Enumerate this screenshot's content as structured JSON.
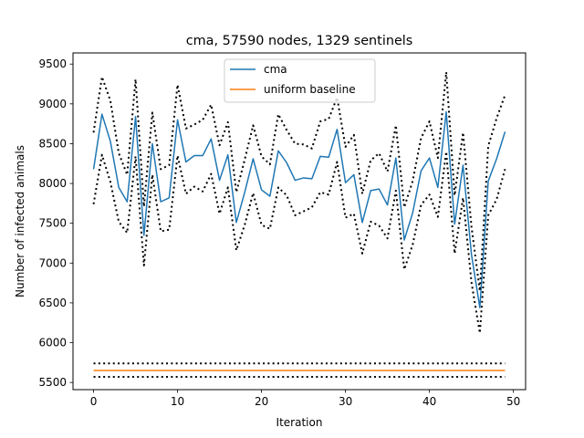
{
  "chart_data": {
    "type": "line",
    "title": "cma, 57590 nodes, 1329 sentinels",
    "xlabel": "Iteration",
    "ylabel": "Number of infected animals",
    "xlim": [
      -2.45,
      51.45
    ],
    "ylim": [
      5410,
      9640
    ],
    "xticks": [
      0,
      10,
      20,
      30,
      40,
      50
    ],
    "yticks": [
      5500,
      6000,
      6500,
      7000,
      7500,
      8000,
      8500,
      9000,
      9500
    ],
    "legend": {
      "placement": "top-center"
    },
    "grid": false,
    "x": [
      0,
      1,
      2,
      3,
      4,
      5,
      6,
      7,
      8,
      9,
      10,
      11,
      12,
      13,
      14,
      15,
      16,
      17,
      18,
      19,
      20,
      21,
      22,
      23,
      24,
      25,
      26,
      27,
      28,
      29,
      30,
      31,
      32,
      33,
      34,
      35,
      36,
      37,
      38,
      39,
      40,
      41,
      42,
      43,
      44,
      45,
      46,
      47,
      48,
      49
    ],
    "series": [
      {
        "name": "cma",
        "color": "#1f77b4",
        "style": "solid",
        "values": [
          8180,
          8870,
          8530,
          7950,
          7770,
          8840,
          7350,
          8500,
          7770,
          7820,
          8800,
          8270,
          8350,
          8350,
          8560,
          8040,
          8360,
          7510,
          7890,
          8310,
          7920,
          7840,
          8410,
          8260,
          8040,
          8070,
          8060,
          8340,
          8330,
          8680,
          8010,
          8110,
          7510,
          7910,
          7930,
          7730,
          8320,
          7290,
          7630,
          8160,
          8320,
          7950,
          8900,
          7490,
          8230,
          7110,
          6440,
          8030,
          8310,
          8650
        ]
      },
      {
        "name": "cma upper bound",
        "color": "#000000",
        "style": "dotted",
        "values": [
          8640,
          9340,
          9040,
          8380,
          8110,
          9310,
          7710,
          8890,
          8180,
          8230,
          9240,
          8690,
          8740,
          8800,
          8990,
          8480,
          8770,
          7890,
          8300,
          8730,
          8340,
          8240,
          8870,
          8670,
          8500,
          8490,
          8440,
          8780,
          8810,
          9080,
          8460,
          8610,
          7870,
          8290,
          8380,
          8150,
          8730,
          7700,
          8030,
          8570,
          8780,
          8320,
          9400,
          7850,
          8640,
          7460,
          6650,
          8470,
          8820,
          9110
        ]
      },
      {
        "name": "cma lower bound",
        "color": "#000000",
        "style": "dotted",
        "values": [
          7740,
          8360,
          8020,
          7520,
          7380,
          8340,
          6970,
          8110,
          7400,
          7420,
          8350,
          7870,
          7960,
          7900,
          8120,
          7620,
          7950,
          7160,
          7480,
          7880,
          7480,
          7430,
          7950,
          7850,
          7600,
          7650,
          7700,
          7890,
          7860,
          8270,
          7570,
          7620,
          7120,
          7520,
          7470,
          7310,
          7910,
          6920,
          7230,
          7730,
          7860,
          7580,
          8400,
          7120,
          7820,
          6760,
          6120,
          7600,
          7800,
          8180
        ]
      },
      {
        "name": "uniform baseline",
        "color": "#ff7f0e",
        "style": "solid",
        "values": [
          5650,
          5650,
          5650,
          5650,
          5650,
          5650,
          5650,
          5650,
          5650,
          5650,
          5650,
          5650,
          5650,
          5650,
          5650,
          5650,
          5650,
          5650,
          5650,
          5650,
          5650,
          5650,
          5650,
          5650,
          5650,
          5650,
          5650,
          5650,
          5650,
          5650,
          5650,
          5650,
          5650,
          5650,
          5650,
          5650,
          5650,
          5650,
          5650,
          5650,
          5650,
          5650,
          5650,
          5650,
          5650,
          5650,
          5650,
          5650,
          5650,
          5650
        ]
      },
      {
        "name": "uniform baseline upper bound",
        "color": "#000000",
        "style": "dotted",
        "values": [
          5740,
          5740,
          5740,
          5740,
          5740,
          5740,
          5740,
          5740,
          5740,
          5740,
          5740,
          5740,
          5740,
          5740,
          5740,
          5740,
          5740,
          5740,
          5740,
          5740,
          5740,
          5740,
          5740,
          5740,
          5740,
          5740,
          5740,
          5740,
          5740,
          5740,
          5740,
          5740,
          5740,
          5740,
          5740,
          5740,
          5740,
          5740,
          5740,
          5740,
          5740,
          5740,
          5740,
          5740,
          5740,
          5740,
          5740,
          5740,
          5740,
          5740
        ]
      },
      {
        "name": "uniform baseline lower bound",
        "color": "#000000",
        "style": "dotted",
        "values": [
          5570,
          5570,
          5570,
          5570,
          5570,
          5570,
          5570,
          5570,
          5570,
          5570,
          5570,
          5570,
          5570,
          5570,
          5570,
          5570,
          5570,
          5570,
          5570,
          5570,
          5570,
          5570,
          5570,
          5570,
          5570,
          5570,
          5570,
          5570,
          5570,
          5570,
          5570,
          5570,
          5570,
          5570,
          5570,
          5570,
          5570,
          5570,
          5570,
          5570,
          5570,
          5570,
          5570,
          5570,
          5570,
          5570,
          5570,
          5570,
          5570,
          5570
        ]
      }
    ],
    "legend_entries": [
      "cma",
      "uniform baseline"
    ]
  }
}
